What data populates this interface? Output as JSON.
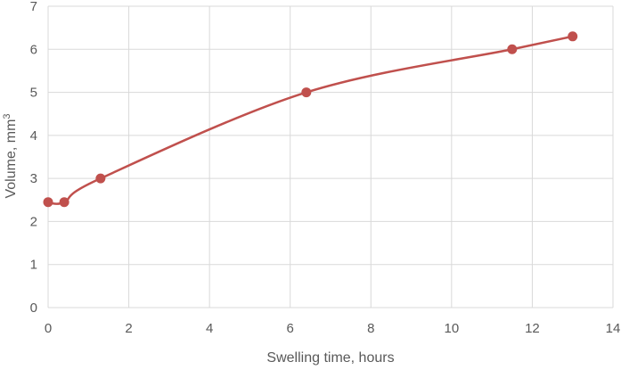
{
  "chart_data": {
    "type": "line",
    "title": "",
    "xlabel": "Swelling time, hours",
    "ylabel": "Volume, mm",
    "ylabel_superscript": "3",
    "xlim": [
      0,
      14
    ],
    "ylim": [
      0,
      7
    ],
    "x_ticks": [
      0,
      2,
      4,
      6,
      8,
      10,
      12,
      14
    ],
    "y_ticks": [
      0,
      1,
      2,
      3,
      4,
      5,
      6,
      7
    ],
    "grid": true,
    "smooth": true,
    "series": [
      {
        "color": "#c0504d",
        "x": [
          0,
          0.4,
          1.3,
          6.4,
          11.5,
          13
        ],
        "y": [
          2.45,
          2.45,
          3.0,
          5.0,
          6.0,
          6.3
        ]
      }
    ]
  }
}
